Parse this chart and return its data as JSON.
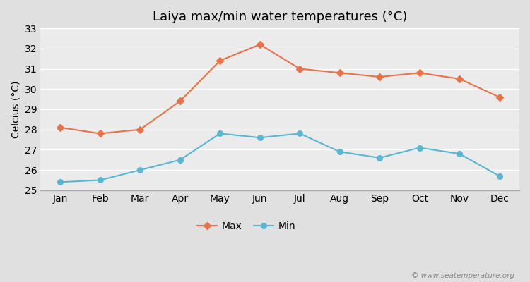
{
  "title": "Laiya max/min water temperatures (°C)",
  "ylabel": "Celcius (°C)",
  "months": [
    "Jan",
    "Feb",
    "Mar",
    "Apr",
    "May",
    "Jun",
    "Jul",
    "Aug",
    "Sep",
    "Oct",
    "Nov",
    "Dec"
  ],
  "max_temps": [
    28.1,
    27.8,
    28.0,
    29.4,
    31.4,
    32.2,
    31.0,
    30.8,
    30.6,
    30.8,
    30.5,
    29.6
  ],
  "min_temps": [
    25.4,
    25.5,
    26.0,
    26.5,
    27.8,
    27.6,
    27.8,
    26.9,
    26.6,
    27.1,
    26.8,
    25.7
  ],
  "max_color": "#e8734a",
  "min_color": "#5ab7d4",
  "fig_bg_color": "#e0e0e0",
  "plot_bg_color": "#ebebeb",
  "grid_color": "#ffffff",
  "ylim": [
    25,
    33
  ],
  "yticks": [
    25,
    26,
    27,
    28,
    29,
    30,
    31,
    32,
    33
  ],
  "watermark": "© www.seatemperature.org",
  "legend_max": "Max",
  "legend_min": "Min",
  "title_fontsize": 13,
  "axis_fontsize": 10,
  "tick_fontsize": 10
}
